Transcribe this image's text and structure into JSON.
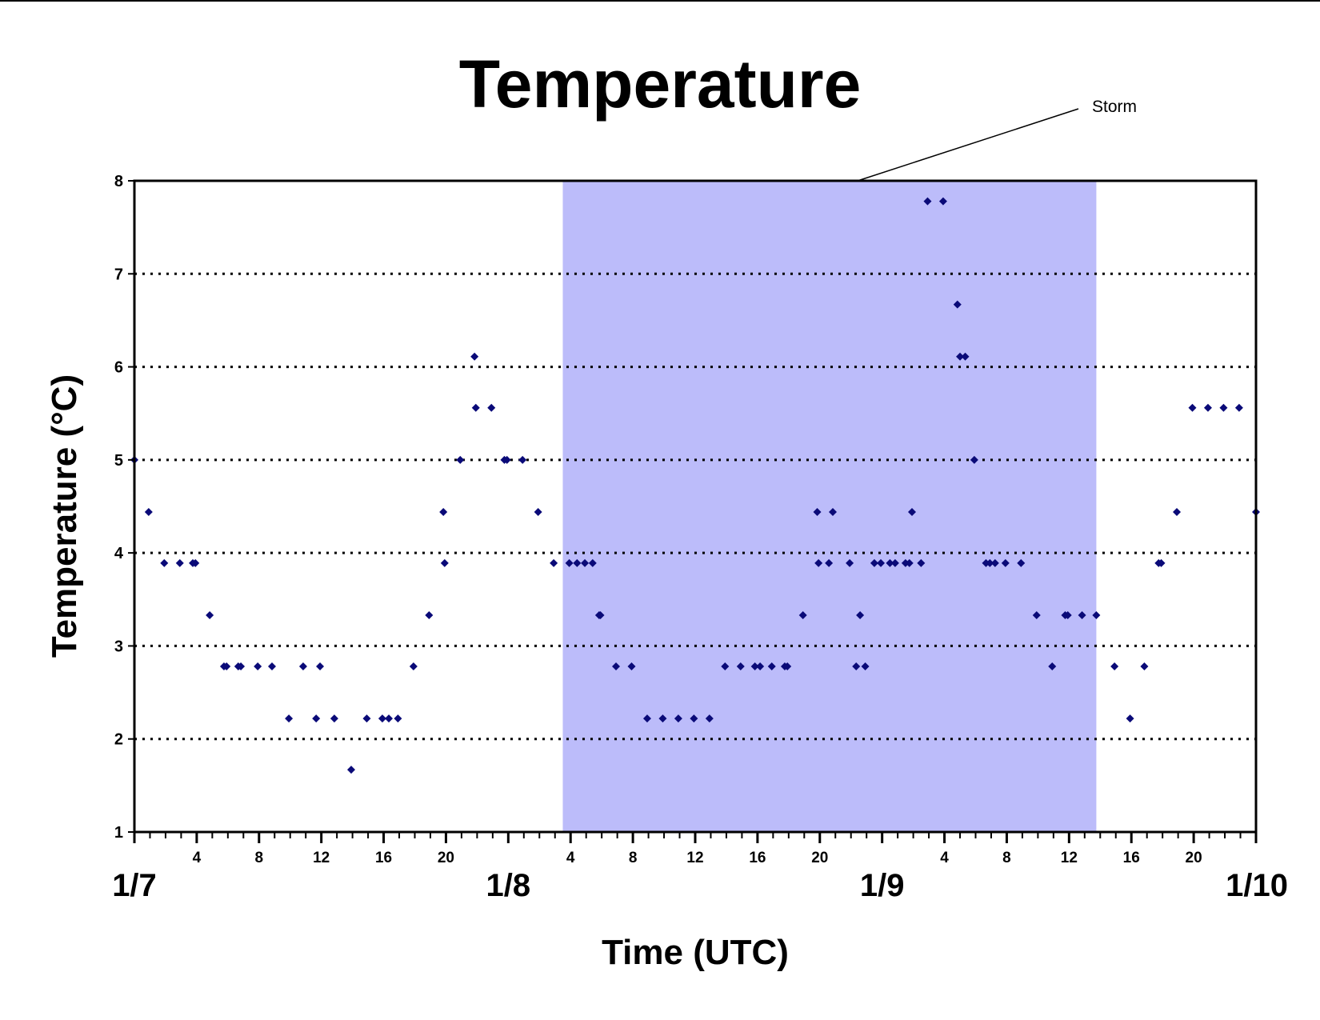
{
  "chart_data": {
    "type": "scatter",
    "title": "Temperature",
    "xlabel": "Time (UTC)",
    "ylabel": "Temperature (°C)",
    "x_unit": "day/hour (UTC)",
    "xlim": [
      "1/7 00:00",
      "1/10 00:00"
    ],
    "ylim": [
      1,
      8
    ],
    "y_ticks": [
      1,
      2,
      3,
      4,
      5,
      6,
      7,
      8
    ],
    "gridlines": {
      "style": "dotted",
      "y_values": [
        2,
        3,
        4,
        5,
        6,
        7
      ]
    },
    "day_labels": [
      "1/7",
      "1/8",
      "1/9",
      "1/10"
    ],
    "hour_tick_labels": [
      "4",
      "8",
      "12",
      "16",
      "20"
    ],
    "marker": {
      "shape": "diamond",
      "color": "#0a0a78"
    },
    "shaded_region": {
      "label": "Storm",
      "start": "1/8 03:30",
      "end": "1/9 13:45",
      "color": "#bcbcfa"
    },
    "annotation": {
      "text": "Storm"
    },
    "series": [
      {
        "points": [
          [
            "1/7 00:00",
            5.0
          ],
          [
            "1/7 00:55",
            4.44
          ],
          [
            "1/7 01:55",
            3.89
          ],
          [
            "1/7 02:55",
            3.89
          ],
          [
            "1/7 03:45",
            3.89
          ],
          [
            "1/7 03:55",
            3.89
          ],
          [
            "1/7 04:50",
            3.33
          ],
          [
            "1/7 05:45",
            2.78
          ],
          [
            "1/7 05:55",
            2.78
          ],
          [
            "1/7 06:40",
            2.78
          ],
          [
            "1/7 06:50",
            2.78
          ],
          [
            "1/7 07:55",
            2.78
          ],
          [
            "1/7 08:50",
            2.78
          ],
          [
            "1/7 09:55",
            2.22
          ],
          [
            "1/7 10:50",
            2.78
          ],
          [
            "1/7 11:40",
            2.22
          ],
          [
            "1/7 11:55",
            2.78
          ],
          [
            "1/7 12:50",
            2.22
          ],
          [
            "1/7 13:55",
            1.67
          ],
          [
            "1/7 14:55",
            2.22
          ],
          [
            "1/7 15:55",
            2.22
          ],
          [
            "1/7 16:20",
            2.22
          ],
          [
            "1/7 16:55",
            2.22
          ],
          [
            "1/7 17:55",
            2.78
          ],
          [
            "1/7 18:55",
            3.33
          ],
          [
            "1/7 19:50",
            4.44
          ],
          [
            "1/7 19:55",
            3.89
          ],
          [
            "1/7 20:55",
            5.0
          ],
          [
            "1/7 21:50",
            6.11
          ],
          [
            "1/7 21:55",
            5.56
          ],
          [
            "1/7 22:55",
            5.56
          ],
          [
            "1/7 23:45",
            5.0
          ],
          [
            "1/7 23:55",
            5.0
          ],
          [
            "1/8 00:55",
            5.0
          ],
          [
            "1/8 01:55",
            4.44
          ],
          [
            "1/8 02:55",
            3.89
          ],
          [
            "1/8 03:55",
            3.89
          ],
          [
            "1/8 04:25",
            3.89
          ],
          [
            "1/8 04:55",
            3.89
          ],
          [
            "1/8 05:25",
            3.89
          ],
          [
            "1/8 05:50",
            3.33
          ],
          [
            "1/8 05:55",
            3.33
          ],
          [
            "1/8 06:55",
            2.78
          ],
          [
            "1/8 07:55",
            2.78
          ],
          [
            "1/8 08:55",
            2.22
          ],
          [
            "1/8 09:55",
            2.22
          ],
          [
            "1/8 10:55",
            2.22
          ],
          [
            "1/8 11:55",
            2.22
          ],
          [
            "1/8 12:55",
            2.22
          ],
          [
            "1/8 13:55",
            2.78
          ],
          [
            "1/8 14:55",
            2.78
          ],
          [
            "1/8 15:50",
            2.78
          ],
          [
            "1/8 16:10",
            2.78
          ],
          [
            "1/8 16:55",
            2.78
          ],
          [
            "1/8 17:45",
            2.78
          ],
          [
            "1/8 17:55",
            2.78
          ],
          [
            "1/8 18:55",
            3.33
          ],
          [
            "1/8 19:50",
            4.44
          ],
          [
            "1/8 19:55",
            3.89
          ],
          [
            "1/8 20:35",
            3.89
          ],
          [
            "1/8 20:50",
            4.44
          ],
          [
            "1/8 21:55",
            3.89
          ],
          [
            "1/8 22:20",
            2.78
          ],
          [
            "1/8 22:35",
            3.33
          ],
          [
            "1/8 22:55",
            2.78
          ],
          [
            "1/8 23:30",
            3.89
          ],
          [
            "1/8 23:55",
            3.89
          ],
          [
            "1/9 00:30",
            3.89
          ],
          [
            "1/9 00:50",
            3.89
          ],
          [
            "1/9 01:30",
            3.89
          ],
          [
            "1/9 01:45",
            3.89
          ],
          [
            "1/9 01:55",
            4.44
          ],
          [
            "1/9 02:30",
            3.89
          ],
          [
            "1/9 02:55",
            7.78
          ],
          [
            "1/9 03:55",
            7.78
          ],
          [
            "1/9 04:50",
            6.67
          ],
          [
            "1/9 05:00",
            6.11
          ],
          [
            "1/9 05:20",
            6.11
          ],
          [
            "1/9 05:55",
            5.0
          ],
          [
            "1/9 06:40",
            3.89
          ],
          [
            "1/9 06:55",
            3.89
          ],
          [
            "1/9 07:15",
            3.89
          ],
          [
            "1/9 07:55",
            3.89
          ],
          [
            "1/9 08:55",
            3.89
          ],
          [
            "1/9 09:55",
            3.33
          ],
          [
            "1/9 10:55",
            2.78
          ],
          [
            "1/9 11:45",
            3.33
          ],
          [
            "1/9 11:55",
            3.33
          ],
          [
            "1/9 12:50",
            3.33
          ],
          [
            "1/9 13:45",
            3.33
          ],
          [
            "1/9 14:55",
            2.78
          ],
          [
            "1/9 15:55",
            2.22
          ],
          [
            "1/9 16:50",
            2.78
          ],
          [
            "1/9 17:45",
            3.89
          ],
          [
            "1/9 17:55",
            3.89
          ],
          [
            "1/9 18:55",
            4.44
          ],
          [
            "1/9 19:55",
            5.56
          ],
          [
            "1/9 20:55",
            5.56
          ],
          [
            "1/9 21:55",
            5.56
          ],
          [
            "1/9 22:55",
            5.56
          ],
          [
            "1/10 00:00",
            4.44
          ]
        ]
      }
    ]
  }
}
